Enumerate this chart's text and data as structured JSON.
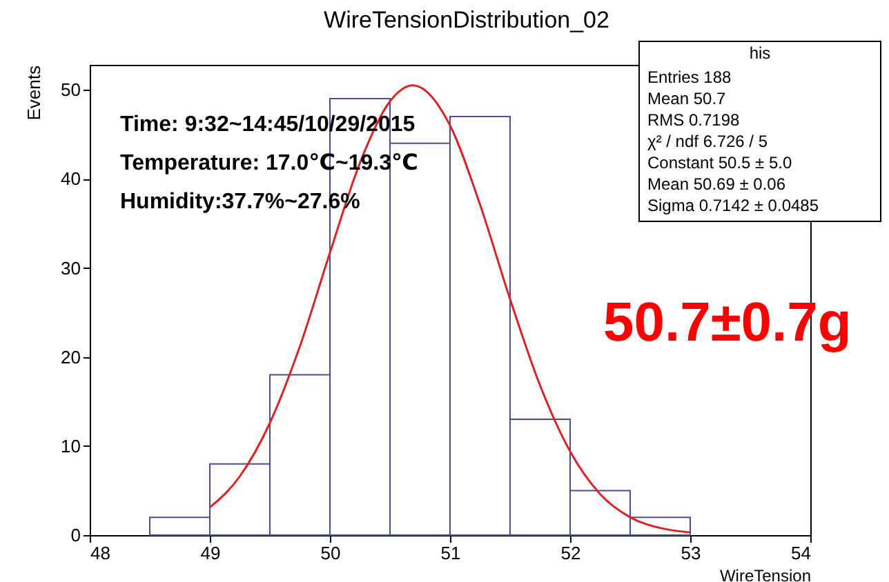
{
  "chart_data": {
    "type": "histogram",
    "title": "WireTensionDistribution_02",
    "xlabel": "WireTension",
    "ylabel": "Events",
    "bins": [
      48.5,
      49,
      49.5,
      50,
      50.5,
      51,
      51.5,
      52,
      52.5,
      53
    ],
    "series": [
      {
        "color": "#4a4a9a",
        "values": [
          2,
          8,
          18,
          49,
          44,
          47,
          13,
          5,
          2
        ]
      },
      {
        "type": "line",
        "color": "#dd2222",
        "x": [
          49,
          49.25,
          49.5,
          49.75,
          50,
          50.25,
          50.5,
          50.69,
          50.75,
          51,
          51.25,
          51.5,
          51.75,
          52,
          52.25,
          52.5,
          52.75,
          53
        ],
        "values": [
          3.1,
          6.6,
          12.6,
          21.2,
          31.7,
          41.8,
          48.7,
          50.5,
          50.3,
          46.0,
          37.1,
          26.5,
          16.8,
          9.4,
          4.6,
          2.0,
          0.8,
          0.3
        ]
      }
    ],
    "xlim": [
      48,
      54
    ],
    "xticks": [
      48,
      49,
      50,
      51,
      52,
      53,
      54
    ],
    "ylim": [
      0,
      52.8
    ],
    "yticks": [
      0,
      10,
      20,
      30,
      40,
      50
    ],
    "grid": false,
    "annotations": [
      "Time: 9:32~14:45/10/29/2015",
      "Temperature: 17.0℃~19.3℃",
      "Humidity:37.7%~27.6%",
      "50.7±0.7g",
      "his",
      "Entries 188",
      "Mean 50.7",
      "RMS 0.7198",
      "χ² / ndf 6.726 / 5",
      "Constant 50.5 ± 5.0",
      "Mean 50.69 ± 0.06",
      "Sigma 0.7142 ± 0.0485"
    ]
  }
}
